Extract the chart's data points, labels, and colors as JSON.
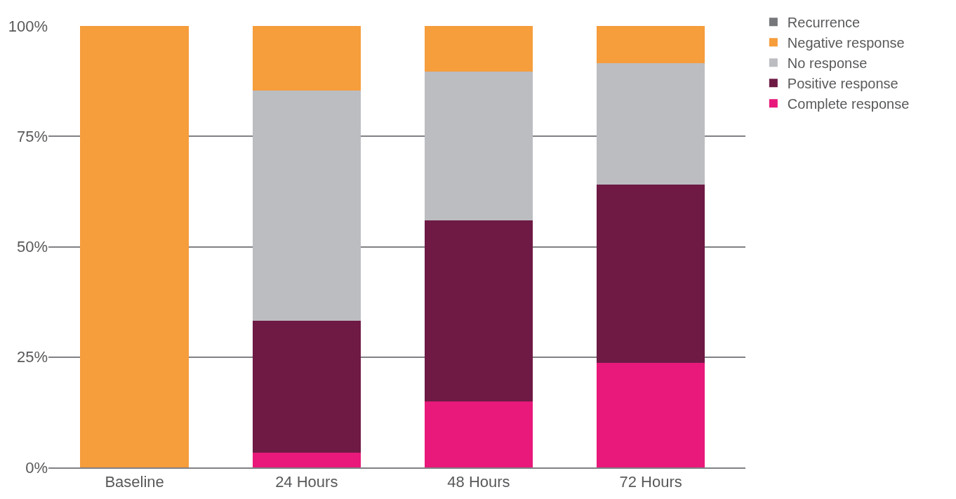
{
  "chart_data": {
    "type": "bar",
    "stacked": true,
    "categories": [
      "Baseline",
      "24 Hours",
      "48 Hours",
      "72 Hours"
    ],
    "series": [
      {
        "name": "Complete response",
        "color": "#e8197a",
        "values": [
          0,
          3.4,
          14.9,
          23.7
        ]
      },
      {
        "name": "Positive response",
        "color": "#6e1a45",
        "values": [
          0,
          29.8,
          41.0,
          40.3
        ]
      },
      {
        "name": "No response",
        "color": "#bcbdc1",
        "values": [
          0,
          52.2,
          33.7,
          27.6
        ]
      },
      {
        "name": "Negative response",
        "color": "#f69d3c",
        "values": [
          100,
          14.6,
          10.4,
          8.4
        ]
      },
      {
        "name": "Recurrence",
        "color": "#76777b",
        "values": [
          0,
          0,
          0,
          0
        ]
      }
    ],
    "ylim": [
      0,
      100
    ],
    "yticks": [
      {
        "value": 0,
        "label": "0%"
      },
      {
        "value": 25,
        "label": "25%"
      },
      {
        "value": 50,
        "label": "50%"
      },
      {
        "value": 75,
        "label": "75%"
      },
      {
        "value": 100,
        "label": "100%"
      }
    ],
    "grid": "y",
    "legend": "right"
  }
}
